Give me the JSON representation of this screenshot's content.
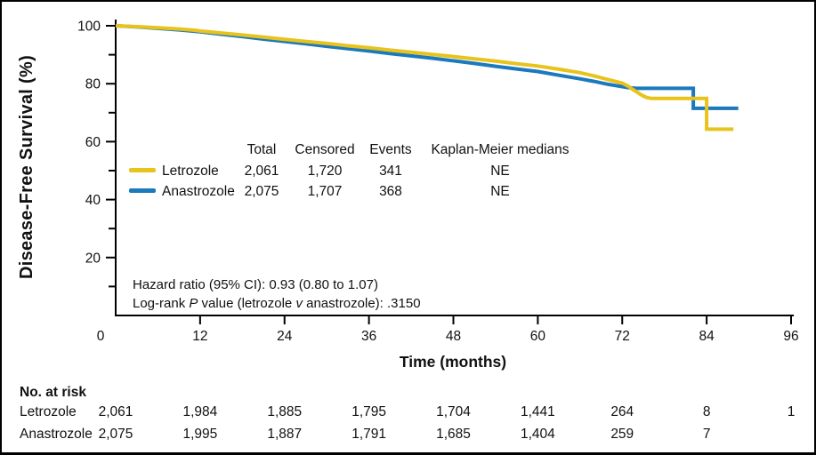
{
  "figure": {
    "background": "#ffffff",
    "border_color": "#000000"
  },
  "chart_data": {
    "type": "line",
    "subtype": "kaplan-meier-survival",
    "title": "",
    "xlabel": "Time (months)",
    "ylabel": "Disease-Free Survival (%)",
    "xlim": [
      0,
      96
    ],
    "ylim": [
      0,
      100
    ],
    "grid": false,
    "x_ticks": [
      {
        "label": "0",
        "month": 0,
        "dx": -17
      },
      {
        "label": "12",
        "month": 12,
        "dx": 0
      },
      {
        "label": "24",
        "month": 24,
        "dx": 0
      },
      {
        "label": "36",
        "month": 36,
        "dx": 0
      },
      {
        "label": "48",
        "month": 48,
        "dx": 0
      },
      {
        "label": "60",
        "month": 60,
        "dx": 0
      },
      {
        "label": "72",
        "month": 72,
        "dx": 0
      },
      {
        "label": "84",
        "month": 84,
        "dx": 0
      },
      {
        "label": "96",
        "month": 96,
        "dx": 0
      }
    ],
    "y_ticks": {
      "major": [
        20,
        40,
        60,
        80,
        100
      ],
      "minor": [
        10,
        30,
        50,
        70,
        90
      ]
    },
    "series": [
      {
        "name": "Letrozole",
        "color": "#E8C31C",
        "points": [
          [
            0,
            100
          ],
          [
            3,
            99.7
          ],
          [
            6,
            99.3
          ],
          [
            9,
            98.9
          ],
          [
            11,
            98.5
          ],
          [
            12,
            98.2
          ],
          [
            15,
            97.5
          ],
          [
            18,
            96.8
          ],
          [
            21,
            96.1
          ],
          [
            24,
            95.3
          ],
          [
            27,
            94.6
          ],
          [
            30,
            93.9
          ],
          [
            33,
            93.1
          ],
          [
            36,
            92.4
          ],
          [
            39,
            91.6
          ],
          [
            42,
            90.9
          ],
          [
            45,
            90.1
          ],
          [
            48,
            89.4
          ],
          [
            51,
            88.6
          ],
          [
            54,
            87.8
          ],
          [
            57,
            86.9
          ],
          [
            60,
            86.1
          ],
          [
            63,
            85.0
          ],
          [
            66,
            83.8
          ],
          [
            68,
            82.7
          ],
          [
            70,
            81.4
          ],
          [
            71,
            80.8
          ],
          [
            72,
            80.2
          ],
          [
            72.8,
            79.2
          ],
          [
            73.4,
            78.2
          ],
          [
            74.1,
            77.1
          ],
          [
            74.8,
            76.0
          ],
          [
            75.5,
            75.2
          ],
          [
            76.2,
            74.9
          ],
          [
            84,
            74.9
          ],
          [
            84,
            64.3
          ],
          [
            87.8,
            64.3
          ]
        ]
      },
      {
        "name": "Anastrozole",
        "color": "#1B79BE",
        "points": [
          [
            0,
            100
          ],
          [
            3,
            99.6
          ],
          [
            6,
            99.1
          ],
          [
            9,
            98.6
          ],
          [
            12,
            97.9
          ],
          [
            15,
            97.1
          ],
          [
            18,
            96.3
          ],
          [
            21,
            95.4
          ],
          [
            24,
            94.6
          ],
          [
            27,
            93.8
          ],
          [
            30,
            92.9
          ],
          [
            33,
            92.1
          ],
          [
            36,
            91.3
          ],
          [
            39,
            90.4
          ],
          [
            42,
            89.6
          ],
          [
            45,
            88.8
          ],
          [
            48,
            87.9
          ],
          [
            51,
            87.0
          ],
          [
            54,
            86.0
          ],
          [
            57,
            85.1
          ],
          [
            60,
            84.2
          ],
          [
            63,
            82.9
          ],
          [
            66,
            81.7
          ],
          [
            68,
            80.8
          ],
          [
            70,
            79.8
          ],
          [
            71,
            79.4
          ],
          [
            72,
            79.0
          ],
          [
            73,
            78.6
          ],
          [
            74,
            78.4
          ],
          [
            82.1,
            78.4
          ],
          [
            82.1,
            71.5
          ],
          [
            88.5,
            71.5
          ]
        ]
      }
    ],
    "legend_table": {
      "headers": [
        "Total",
        "Censored",
        "Events",
        "Kaplan-Meier medians"
      ],
      "rows": [
        {
          "name": "Letrozole",
          "total": "2,061",
          "censored": "1,720",
          "events": "341",
          "km_median": "NE"
        },
        {
          "name": "Anastrozole",
          "total": "2,075",
          "censored": "1,707",
          "events": "368",
          "km_median": "NE"
        }
      ]
    },
    "stats": {
      "line1": "Hazard ratio (95% CI): 0.93 (0.80 to 1.07)",
      "line2_pre": "Log-rank ",
      "line2_p": "P",
      "line2_mid": " value (letrozole ",
      "line2_v": "v",
      "line2_post": " anastrozole): .3150"
    },
    "risk_table": {
      "title": "No. at risk",
      "rows": [
        {
          "name": "Letrozole",
          "values": [
            "2,061",
            "1,984",
            "1,885",
            "1,795",
            "1,704",
            "1,441",
            "264",
            "8",
            "1"
          ]
        },
        {
          "name": "Anastrozole",
          "values": [
            "2,075",
            "1,995",
            "1,887",
            "1,791",
            "1,685",
            "1,404",
            "259",
            "7",
            ""
          ]
        }
      ]
    }
  }
}
